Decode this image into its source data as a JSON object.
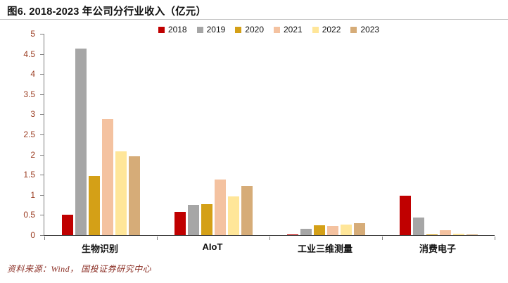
{
  "title": "图6. 2018-2023 年公司分行业收入（亿元）",
  "footer": {
    "source": "资料来源：Wind， 国投证券研究中心"
  },
  "chart_data": {
    "type": "bar",
    "title": "图6. 2018-2023 年公司分行业收入（亿元）",
    "xlabel": "",
    "ylabel": "",
    "ylim": [
      0,
      5
    ],
    "ytick_step": 0.5,
    "grid": false,
    "legend_position": "top-center",
    "categories": [
      "生物识别",
      "AIoT",
      "工业三维测量",
      "消费电子"
    ],
    "series": [
      {
        "name": "2018",
        "color": "#c00000",
        "values": [
          0.5,
          0.57,
          0.02,
          0.98
        ]
      },
      {
        "name": "2019",
        "color": "#a6a6a6",
        "values": [
          4.63,
          0.75,
          0.15,
          0.43
        ]
      },
      {
        "name": "2020",
        "color": "#d4a017",
        "values": [
          1.47,
          0.77,
          0.24,
          0.02
        ]
      },
      {
        "name": "2021",
        "color": "#f4c2a0",
        "values": [
          2.88,
          1.38,
          0.22,
          0.12
        ]
      },
      {
        "name": "2022",
        "color": "#ffe699",
        "values": [
          2.08,
          0.96,
          0.27,
          0.03
        ]
      },
      {
        "name": "2023",
        "color": "#d6ac78",
        "values": [
          1.95,
          1.22,
          0.3,
          0.02
        ]
      }
    ]
  }
}
